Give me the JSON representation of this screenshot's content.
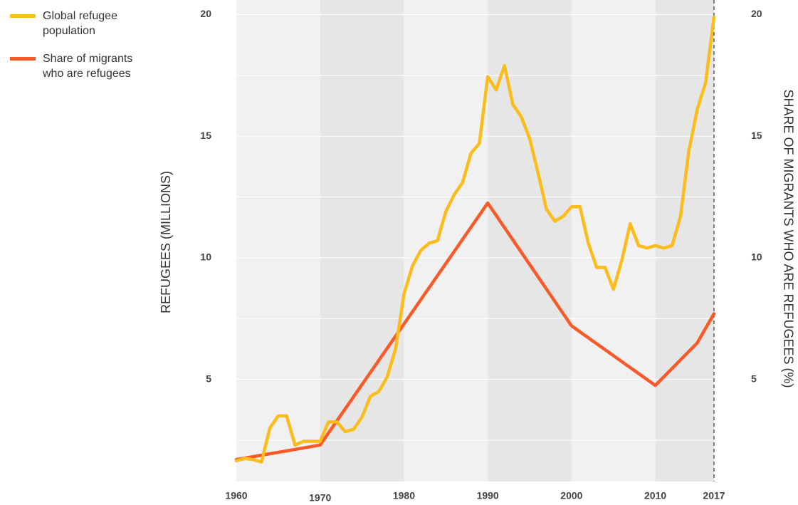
{
  "chart_data": {
    "type": "line",
    "xlim": [
      1960,
      2017
    ],
    "xticks": [
      1960,
      1970,
      1980,
      1990,
      2000,
      2010,
      2017
    ],
    "ylim": [
      0.8,
      20.6
    ],
    "yticks": [
      5,
      10,
      15,
      20
    ],
    "minor_yticks": [
      2.5,
      7.5,
      12.5,
      17.5
    ],
    "y2lim": [
      0.8,
      20.6
    ],
    "y2ticks": [
      5,
      10,
      15,
      20
    ],
    "y_label": "REFUGEES (MILLIONS)",
    "y2_label": "SHARE OF MIGRANTS WHO ARE REFUGEES (%)",
    "grid": true,
    "legend": "top-left",
    "series": [
      {
        "name": "Global refugee population",
        "color": "#fbbc1c",
        "x": [
          1960,
          1961,
          1962,
          1963,
          1964,
          1965,
          1966,
          1967,
          1968,
          1969,
          1970,
          1971,
          1972,
          1973,
          1974,
          1975,
          1976,
          1977,
          1978,
          1979,
          1980,
          1981,
          1982,
          1983,
          1984,
          1985,
          1986,
          1987,
          1988,
          1989,
          1990,
          1991,
          1992,
          1993,
          1994,
          1995,
          1996,
          1997,
          1998,
          1999,
          2000,
          2001,
          2002,
          2003,
          2004,
          2005,
          2006,
          2007,
          2008,
          2009,
          2010,
          2011,
          2012,
          2013,
          2014,
          2015,
          2016,
          2017
        ],
        "values": [
          1.65,
          1.75,
          1.7,
          1.6,
          3.0,
          3.5,
          3.5,
          2.3,
          2.45,
          2.45,
          2.45,
          3.25,
          3.25,
          2.85,
          2.95,
          3.45,
          4.3,
          4.5,
          5.1,
          6.25,
          8.5,
          9.65,
          10.3,
          10.6,
          10.7,
          11.9,
          12.6,
          13.1,
          14.3,
          14.7,
          17.45,
          16.9,
          17.9,
          16.3,
          15.8,
          14.9,
          13.5,
          12.0,
          11.5,
          11.7,
          12.1,
          12.1,
          10.6,
          9.6,
          9.6,
          8.7,
          9.9,
          11.4,
          10.5,
          10.4,
          10.5,
          10.4,
          10.5,
          11.7,
          14.4,
          16.1,
          17.2,
          19.9
        ]
      },
      {
        "name": "Share of migrants who are refugees",
        "color": "#fa5a28",
        "axis": "y2",
        "x": [
          1960,
          1970,
          1990,
          2000,
          2010,
          2015,
          2017
        ],
        "values": [
          1.7,
          2.3,
          12.25,
          7.2,
          4.75,
          6.5,
          7.7
        ]
      }
    ]
  }
}
